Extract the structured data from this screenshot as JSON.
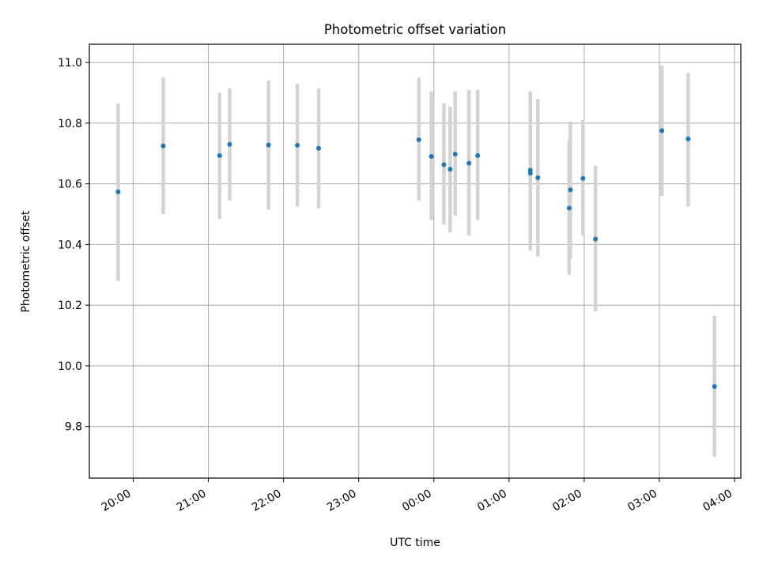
{
  "chart_data": {
    "type": "scatter",
    "title": "Photometric offset variation",
    "xlabel": "UTC time",
    "ylabel": "Photometric offset",
    "x_tick_labels": [
      "20:00",
      "21:00",
      "22:00",
      "23:00",
      "00:00",
      "01:00",
      "02:00",
      "03:00",
      "04:00"
    ],
    "x_tick_hours": [
      20,
      21,
      22,
      23,
      24,
      25,
      26,
      27,
      28
    ],
    "y_ticks": [
      9.8,
      10.0,
      10.2,
      10.4,
      10.6,
      10.8,
      11.0
    ],
    "y_tick_labels": [
      "9.8",
      "10.0",
      "10.2",
      "10.4",
      "10.6",
      "10.8",
      "11.0"
    ],
    "xlim": [
      "19:25",
      "04:05"
    ],
    "ylim": [
      9.63,
      11.06
    ],
    "grid": true,
    "marker_color": "#1f77b4",
    "errorbar_color": "#d3d3d3",
    "points": [
      {
        "t": "19:48",
        "y": 10.574,
        "lo": 10.28,
        "hi": 10.865
      },
      {
        "t": "20:24",
        "y": 10.725,
        "lo": 10.5,
        "hi": 10.95
      },
      {
        "t": "21:09",
        "y": 10.693,
        "lo": 10.485,
        "hi": 10.9
      },
      {
        "t": "21:17",
        "y": 10.73,
        "lo": 10.545,
        "hi": 10.915
      },
      {
        "t": "21:48",
        "y": 10.728,
        "lo": 10.515,
        "hi": 10.94
      },
      {
        "t": "22:11",
        "y": 10.727,
        "lo": 10.525,
        "hi": 10.93
      },
      {
        "t": "22:28",
        "y": 10.717,
        "lo": 10.52,
        "hi": 10.915
      },
      {
        "t": "23:48",
        "y": 10.745,
        "lo": 10.545,
        "hi": 10.95
      },
      {
        "t": "23:58",
        "y": 10.69,
        "lo": 10.48,
        "hi": 10.905
      },
      {
        "t": "00:08",
        "y": 10.663,
        "lo": 10.465,
        "hi": 10.865
      },
      {
        "t": "00:13",
        "y": 10.648,
        "lo": 10.44,
        "hi": 10.855
      },
      {
        "t": "00:17",
        "y": 10.698,
        "lo": 10.495,
        "hi": 10.905
      },
      {
        "t": "00:28",
        "y": 10.668,
        "lo": 10.43,
        "hi": 10.91
      },
      {
        "t": "00:35",
        "y": 10.693,
        "lo": 10.48,
        "hi": 10.91
      },
      {
        "t": "01:17",
        "y": 10.645,
        "lo": 10.38,
        "hi": 10.905
      },
      {
        "t": "01:17",
        "y": 10.635,
        "lo": 10.38,
        "hi": 10.9
      },
      {
        "t": "01:23",
        "y": 10.62,
        "lo": 10.36,
        "hi": 10.88
      },
      {
        "t": "01:48",
        "y": 10.52,
        "lo": 10.3,
        "hi": 10.745
      },
      {
        "t": "01:49",
        "y": 10.58,
        "lo": 10.355,
        "hi": 10.805
      },
      {
        "t": "01:59",
        "y": 10.618,
        "lo": 10.43,
        "hi": 10.81
      },
      {
        "t": "02:09",
        "y": 10.418,
        "lo": 10.18,
        "hi": 10.66
      },
      {
        "t": "03:02",
        "y": 10.775,
        "lo": 10.56,
        "hi": 10.99
      },
      {
        "t": "03:23",
        "y": 10.748,
        "lo": 10.525,
        "hi": 10.965
      },
      {
        "t": "03:44",
        "y": 9.932,
        "lo": 9.7,
        "hi": 10.165
      }
    ]
  }
}
